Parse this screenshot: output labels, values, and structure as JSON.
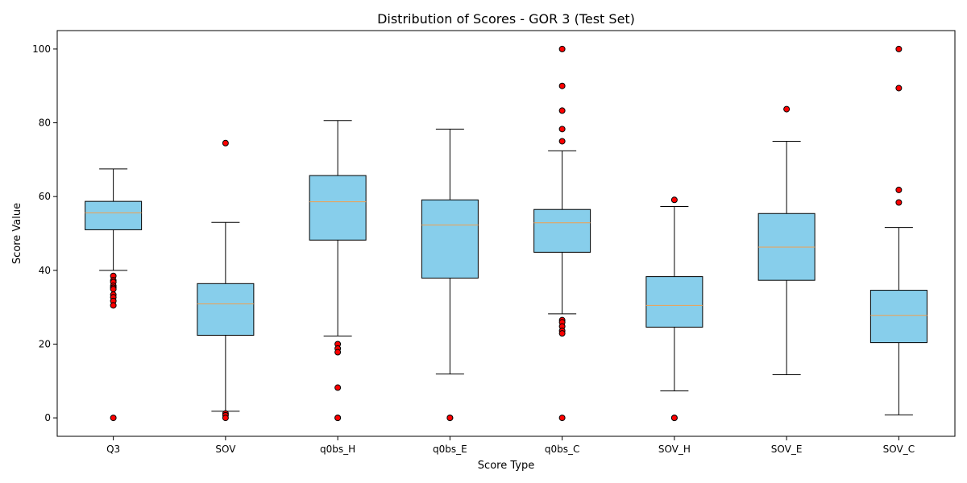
{
  "chart_data": {
    "type": "box",
    "title": "Distribution of Scores - GOR 3 (Test Set)",
    "xlabel": "Score Type",
    "ylabel": "Score Value",
    "ylim": [
      -5,
      105
    ],
    "yticks": [
      0,
      20,
      40,
      60,
      80,
      100
    ],
    "grid": false,
    "colors": {
      "box_fill": "#87ceeb",
      "box_edge": "#000000",
      "median": "#f0a050",
      "outlier_fill": "#ff0000",
      "outlier_edge": "#000000"
    },
    "categories": [
      "Q3",
      "SOV",
      "q0bs_H",
      "q0bs_E",
      "q0bs_C",
      "SOV_H",
      "SOV_E",
      "SOV_C"
    ],
    "boxes": [
      {
        "whisker_low": 40.0,
        "q1": 51.0,
        "median": 55.6,
        "q3": 58.7,
        "whisker_high": 67.5,
        "outliers": [
          38.5,
          37.3,
          36.8,
          35.8,
          35.3,
          34.9,
          33.4,
          32.7,
          31.7,
          30.5,
          0.0
        ]
      },
      {
        "whisker_low": 1.8,
        "q1": 22.4,
        "median": 30.9,
        "q3": 36.4,
        "whisker_high": 53.0,
        "outliers": [
          74.5,
          1.2,
          0.7,
          0.0
        ]
      },
      {
        "whisker_low": 22.2,
        "q1": 48.2,
        "median": 58.6,
        "q3": 65.7,
        "whisker_high": 80.6,
        "outliers": [
          20.0,
          18.8,
          17.8,
          8.2,
          0.0,
          0.0
        ]
      },
      {
        "whisker_low": 11.9,
        "q1": 37.9,
        "median": 52.3,
        "q3": 59.1,
        "whisker_high": 78.3,
        "outliers": [
          0.0,
          0.0
        ]
      },
      {
        "whisker_low": 28.2,
        "q1": 44.9,
        "median": 52.9,
        "q3": 56.5,
        "whisker_high": 72.4,
        "outliers": [
          100.0,
          90.0,
          83.3,
          78.3,
          75.0,
          26.5,
          25.9,
          24.8,
          23.6,
          22.9,
          0.0
        ]
      },
      {
        "whisker_low": 7.3,
        "q1": 24.6,
        "median": 30.5,
        "q3": 38.3,
        "whisker_high": 57.3,
        "outliers": [
          59.1,
          0.0,
          0.0
        ]
      },
      {
        "whisker_low": 11.7,
        "q1": 37.3,
        "median": 46.3,
        "q3": 55.4,
        "whisker_high": 75.0,
        "outliers": [
          83.7
        ]
      },
      {
        "whisker_low": 0.8,
        "q1": 20.4,
        "median": 27.8,
        "q3": 34.6,
        "whisker_high": 51.6,
        "outliers": [
          100.0,
          89.4,
          61.8,
          58.4
        ]
      }
    ]
  }
}
